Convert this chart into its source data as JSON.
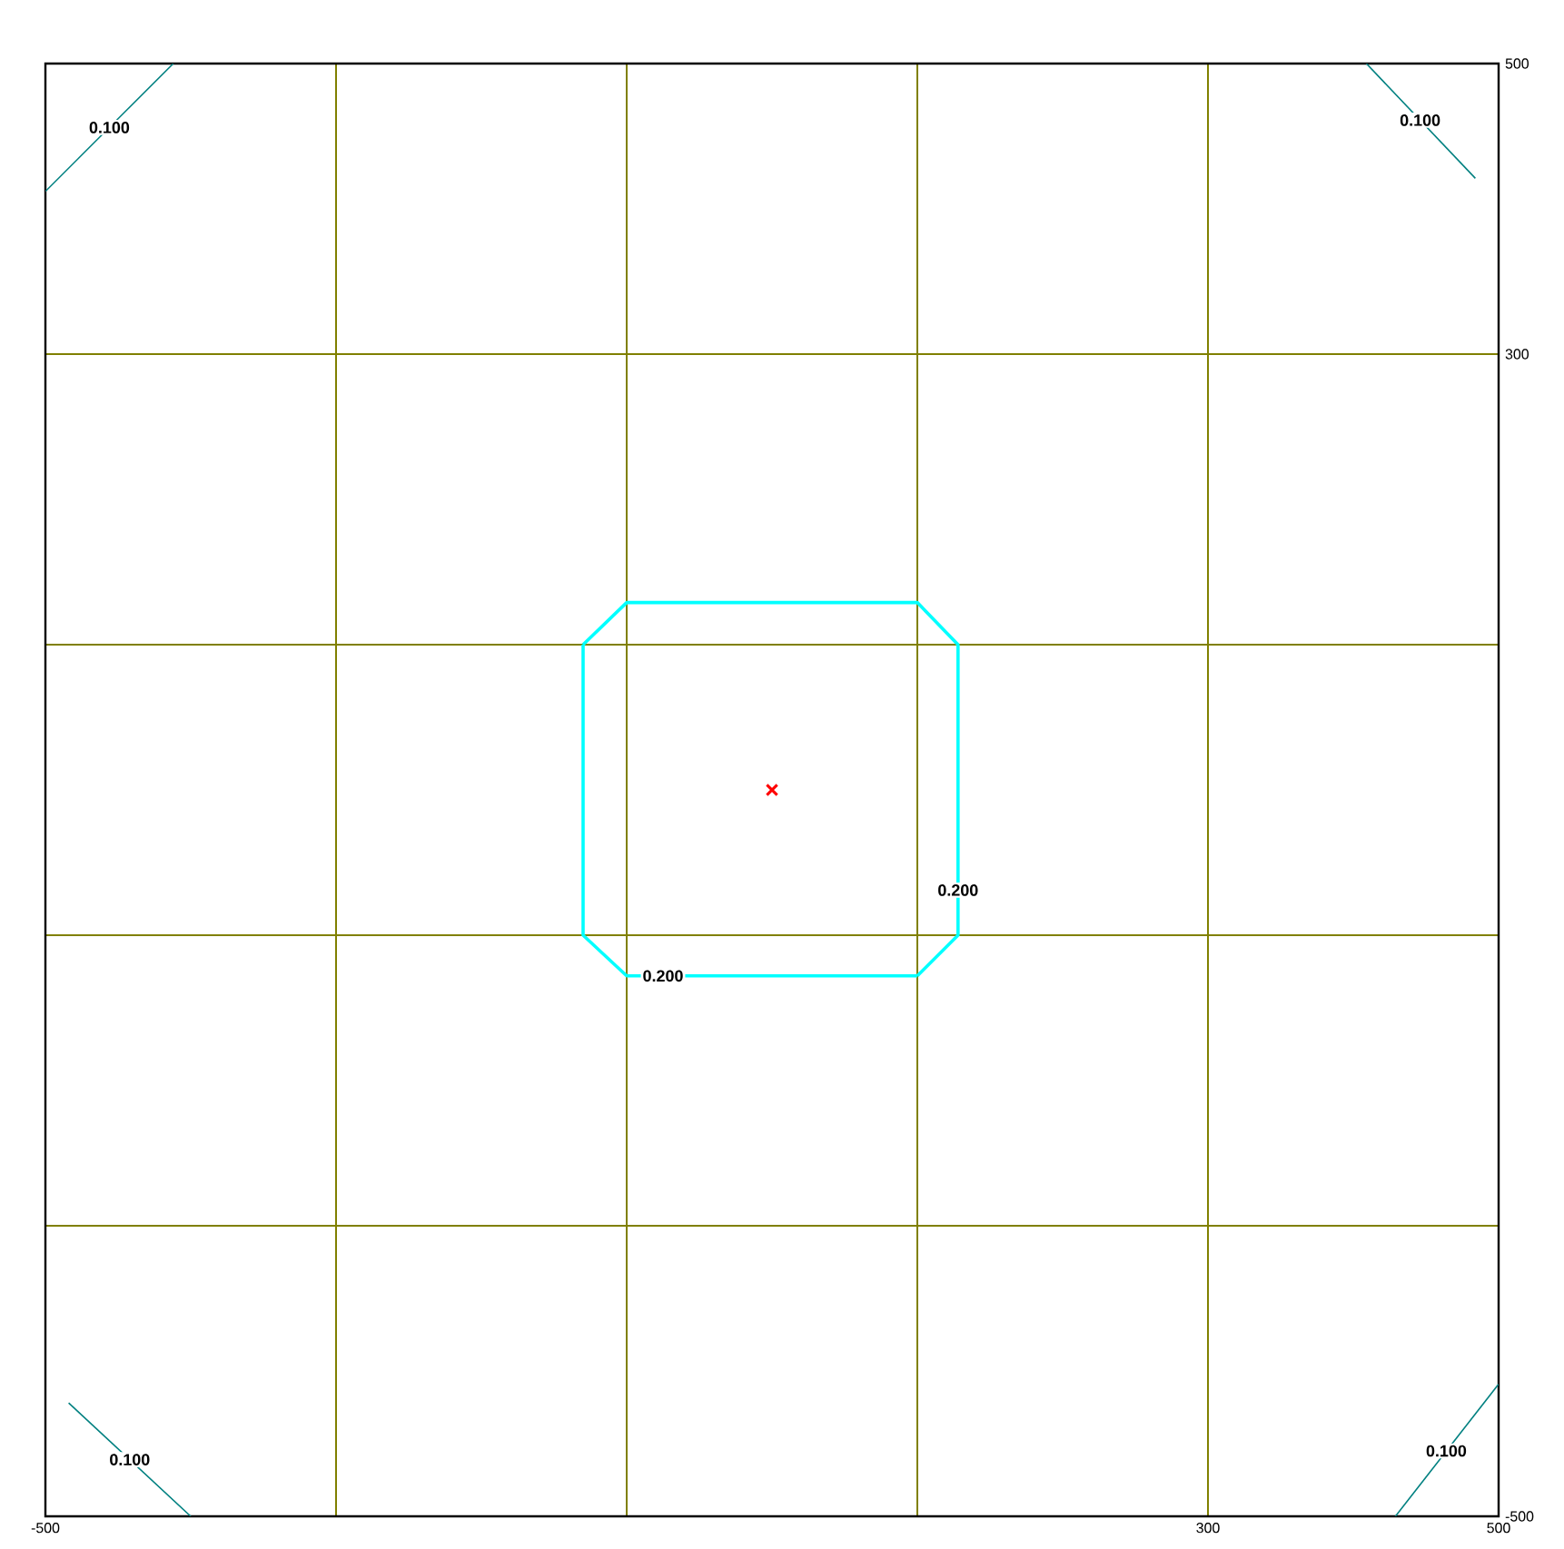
{
  "chart_data": {
    "type": "line",
    "xlim": [
      -500,
      500
    ],
    "ylim": [
      -500,
      500
    ],
    "xticks": [
      -500,
      {
        "value": -300,
        "label": null
      },
      {
        "value": -100,
        "label": null
      },
      {
        "value": 100,
        "label": null
      },
      300,
      500
    ],
    "yticks": [
      -500,
      {
        "value": -300,
        "label": null
      },
      {
        "value": -100,
        "label": null
      },
      {
        "value": 100,
        "label": null
      },
      300,
      500
    ],
    "grid": true,
    "series": [
      {
        "type": "line",
        "color": "#00ffff",
        "x": [
          -130,
          -100,
          100,
          128,
          128,
          100
        ],
        "values": [
          100,
          129,
          129,
          100,
          -100,
          -128
        ]
      },
      {
        "type": "line",
        "color": "#00ffff",
        "x": [
          100,
          -100,
          -130,
          -130
        ],
        "values": [
          -128,
          -128,
          -100,
          100
        ]
      },
      {
        "color": "#008080",
        "x": [
          -500,
          -412
        ],
        "values": [
          412,
          500
        ]
      },
      {
        "color": "#008080",
        "x": [
          409,
          484
        ],
        "values": [
          500,
          421
        ]
      },
      {
        "color": "#008080",
        "x": [
          -484,
          -400
        ],
        "values": [
          -422,
          -500
        ]
      },
      {
        "color": "#008080",
        "x": [
          429,
          500
        ],
        "values": [
          -500,
          -409
        ]
      },
      {
        "type": "scatter",
        "color": "#ff0000",
        "marker": "cross",
        "x": [
          0
        ],
        "values": [
          0
        ]
      }
    ],
    "annotations": [
      {
        "text": "0.200",
        "x": -75,
        "y": -128
      },
      {
        "text": "0.200",
        "x": 128,
        "y": -69
      },
      {
        "text": "0.100",
        "x": -456,
        "y": 456
      },
      {
        "text": "0.100",
        "x": 446,
        "y": 461
      },
      {
        "text": "0.100",
        "x": -442,
        "y": -461
      },
      {
        "text": "0.100",
        "x": 464,
        "y": -455
      }
    ]
  }
}
